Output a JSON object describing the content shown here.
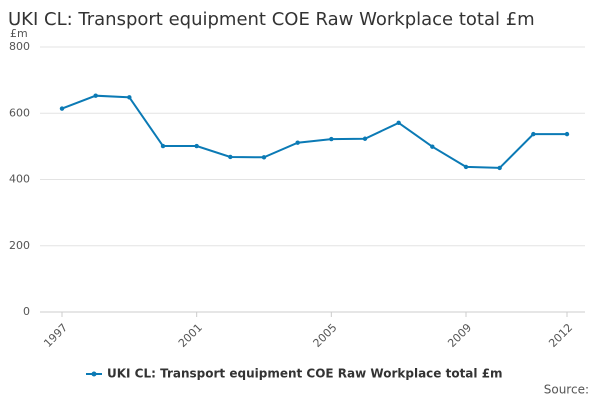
{
  "chart_data": {
    "type": "line",
    "title": "UKI CL: Transport equipment COE Raw Workplace total £m",
    "y_label": "£m",
    "x": [
      1997,
      1998,
      1999,
      2000,
      2001,
      2002,
      2003,
      2004,
      2005,
      2006,
      2007,
      2008,
      2009,
      2010,
      2011,
      2012
    ],
    "series": [
      {
        "name": "UKI CL: Transport equipment COE Raw Workplace total £m",
        "color": "#0b7ab5",
        "values": [
          614,
          653,
          648,
          501,
          501,
          468,
          467,
          511,
          522,
          523,
          571,
          499,
          438,
          435,
          537,
          537
        ]
      }
    ],
    "xlim": [
      1997,
      2012
    ],
    "xticks": [
      1997,
      2001,
      2005,
      2009,
      2012
    ],
    "ylim": [
      0,
      800
    ],
    "yticks": [
      0,
      200,
      400,
      600,
      800
    ],
    "grid": true,
    "legend": "bottom",
    "source": "Source:"
  }
}
